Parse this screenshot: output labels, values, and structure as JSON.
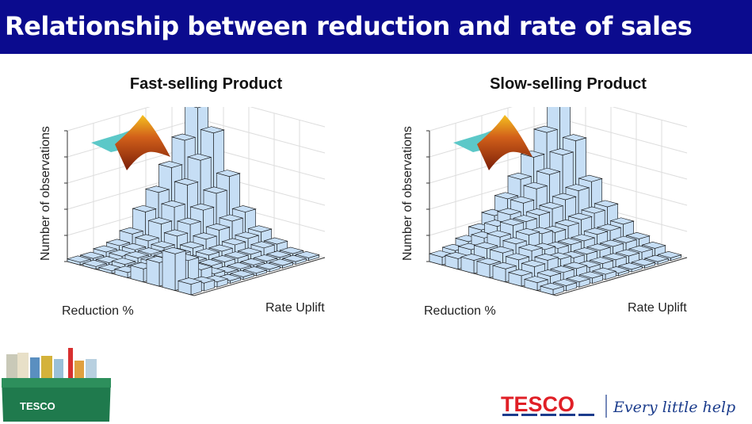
{
  "header": {
    "title": "Relationship between reduction and rate of sales"
  },
  "colors": {
    "header": "#0b0b8e",
    "bar": "#c6def5",
    "tesco_red": "#e01f26",
    "tesco_blue": "#1b3c8c"
  },
  "footer": {
    "brand": "TESCO",
    "slogan": "Every little helps",
    "basket_label": "TESCO"
  },
  "chart_data": [
    {
      "type": "bar3d",
      "title": "Fast-selling Product",
      "xlabel": "Reduction %",
      "ylabel": "Rate Uplift",
      "zlabel": "Number of observations",
      "zlim": [
        0,
        5
      ],
      "grid": true,
      "heights": [
        [
          0.1,
          0.1,
          0.2,
          0.3,
          0.6,
          1.3,
          1.9,
          2.7,
          3.6,
          4.7
        ],
        [
          0.1,
          0.1,
          0.2,
          0.3,
          0.5,
          1.0,
          1.5,
          2.2,
          3.0,
          3.9
        ],
        [
          0.1,
          0.2,
          0.3,
          0.3,
          0.4,
          0.7,
          1.0,
          1.4,
          1.9,
          2.4
        ],
        [
          0.2,
          0.2,
          0.3,
          0.3,
          0.3,
          0.4,
          0.6,
          0.8,
          1.0,
          1.2
        ],
        [
          0.5,
          0.4,
          0.3,
          0.2,
          0.2,
          0.3,
          0.3,
          0.4,
          0.5,
          0.6
        ],
        [
          0.9,
          0.7,
          0.4,
          0.2,
          0.2,
          0.2,
          0.2,
          0.2,
          0.3,
          0.3
        ],
        [
          1.4,
          1.0,
          0.5,
          0.2,
          0.1,
          0.1,
          0.1,
          0.1,
          0.1,
          0.1
        ],
        [
          0.4,
          0.3,
          0.2,
          0.1,
          0.1,
          0.1,
          0.1,
          0.1,
          0.1,
          0.1
        ]
      ]
    },
    {
      "type": "bar3d",
      "title": "Slow-selling Product",
      "xlabel": "Reduction %",
      "ylabel": "Rate Uplift",
      "zlabel": "Number of observations",
      "zlim": [
        0,
        5
      ],
      "grid": true,
      "heights": [
        [
          0.3,
          0.4,
          0.6,
          0.9,
          1.3,
          1.8,
          2.4,
          3.1,
          3.9,
          4.9
        ],
        [
          0.4,
          0.6,
          0.9,
          1.2,
          1.5,
          1.8,
          2.2,
          2.6,
          3.2,
          3.6
        ],
        [
          0.5,
          0.8,
          1.1,
          1.4,
          1.4,
          1.5,
          1.6,
          1.8,
          2.0,
          2.2
        ],
        [
          0.5,
          0.8,
          1.0,
          1.2,
          1.1,
          1.0,
          1.1,
          1.2,
          1.3,
          1.4
        ],
        [
          0.5,
          0.7,
          0.9,
          0.8,
          0.7,
          0.7,
          0.7,
          0.8,
          0.8,
          0.9
        ],
        [
          0.4,
          0.6,
          0.7,
          0.6,
          0.5,
          0.5,
          0.5,
          0.5,
          0.5,
          0.5
        ],
        [
          0.3,
          0.4,
          0.4,
          0.4,
          0.3,
          0.3,
          0.3,
          0.3,
          0.3,
          0.3
        ],
        [
          0.2,
          0.2,
          0.2,
          0.2,
          0.2,
          0.1,
          0.1,
          0.1,
          0.1,
          0.1
        ]
      ]
    }
  ]
}
